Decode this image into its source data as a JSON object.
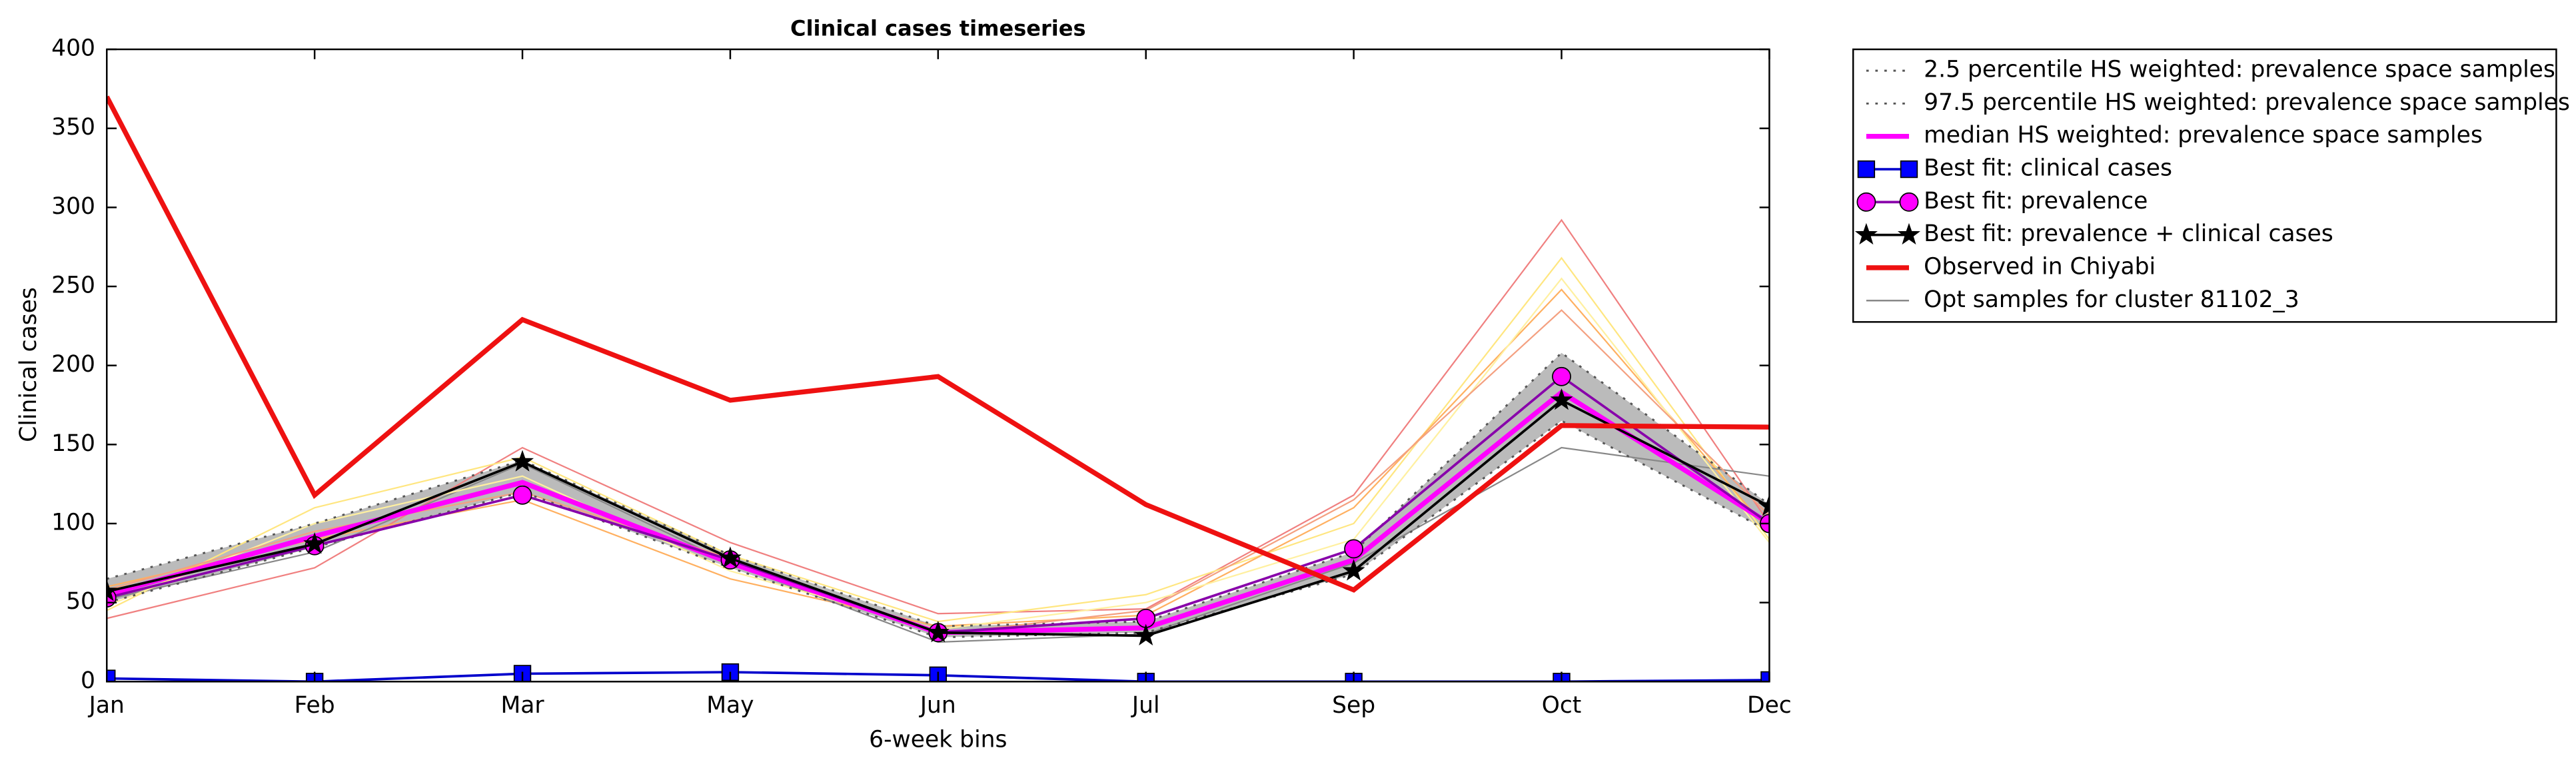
{
  "chart_data": {
    "type": "line",
    "title": "Clinical cases timeseries",
    "xlabel": "6-week bins",
    "ylabel": "Clinical cases",
    "categories": [
      "Jan",
      "Feb",
      "Mar",
      "May",
      "Jun",
      "Jul",
      "Sep",
      "Oct",
      "Dec"
    ],
    "ylim": [
      0,
      400
    ],
    "yticks": [
      0,
      50,
      100,
      150,
      200,
      250,
      300,
      350,
      400
    ],
    "band_color": "#bbbbbb",
    "opt_samples": {
      "name": "Opt samples for cluster 81102_3",
      "color": "#888888",
      "lines": [
        {
          "color": "#f08080",
          "values": [
            40,
            72,
            148,
            88,
            43,
            46,
            118,
            292,
            100
          ]
        },
        {
          "color": "#ffe680",
          "values": [
            45,
            110,
            142,
            80,
            38,
            55,
            100,
            268,
            90
          ]
        },
        {
          "color": "#ffb060",
          "values": [
            60,
            90,
            115,
            65,
            35,
            42,
            110,
            248,
            95
          ]
        },
        {
          "color": "#888888",
          "values": [
            52,
            82,
            138,
            75,
            25,
            30,
            75,
            148,
            130
          ]
        },
        {
          "color": "#fff0a0",
          "values": [
            48,
            100,
            130,
            70,
            33,
            50,
            90,
            255,
            88
          ]
        },
        {
          "color": "#f4a080",
          "values": [
            58,
            95,
            120,
            78,
            30,
            45,
            115,
            235,
            105
          ]
        }
      ]
    },
    "series": [
      {
        "name": "2.5 percentile HS weighted: prevalence space samples",
        "color": "#555555",
        "dash": "1.5 4",
        "width": 1.2,
        "values": [
          50,
          85,
          120,
          72,
          28,
          31,
          68,
          165,
          95
        ]
      },
      {
        "name": "97.5 percentile HS weighted: prevalence space samples",
        "color": "#555555",
        "dash": "1.5 4",
        "width": 1.2,
        "values": [
          65,
          100,
          140,
          80,
          35,
          38,
          82,
          208,
          112
        ]
      },
      {
        "name": "median HS weighted: prevalence space samples",
        "color": "#ff00ff",
        "width": 3,
        "values": [
          55,
          92,
          126,
          75,
          31,
          34,
          77,
          183,
          100
        ]
      },
      {
        "name": "Best fit: clinical cases",
        "color": "#0000cc",
        "width": 1.5,
        "marker": "square",
        "marker_color": "#0000ff",
        "values": [
          2,
          0,
          5,
          6,
          4,
          0,
          0,
          0,
          1
        ]
      },
      {
        "name": "Best fit: prevalence",
        "color": "#8800aa",
        "width": 1.5,
        "marker": "circle",
        "marker_color": "#ff00ff",
        "values": [
          53,
          86,
          118,
          77,
          31,
          40,
          84,
          193,
          100
        ]
      },
      {
        "name": "Best fit: prevalence + clinical cases",
        "color": "#000000",
        "width": 1.5,
        "marker": "star",
        "marker_color": "#000000",
        "values": [
          57,
          87,
          139,
          78,
          31,
          29,
          70,
          178,
          111
        ]
      },
      {
        "name": "Observed in Chiyabi",
        "color": "#ee1111",
        "width": 3,
        "values": [
          370,
          118,
          229,
          178,
          193,
          112,
          58,
          162,
          161
        ]
      }
    ]
  }
}
